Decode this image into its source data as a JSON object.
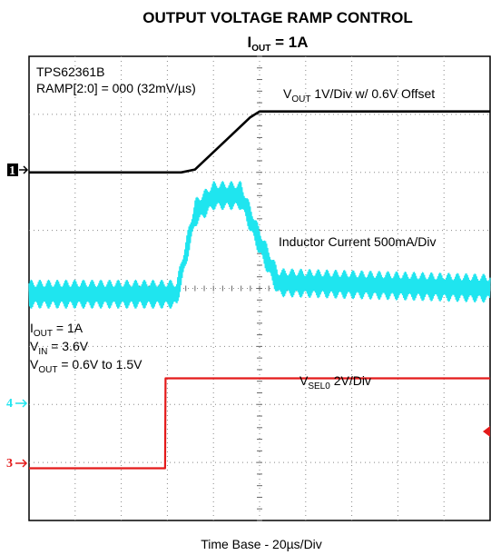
{
  "chart_data": {
    "type": "line",
    "title_main": "OUTPUT VOLTAGE RAMP CONTROL",
    "title_sub": {
      "base": "I",
      "subscript": "OUT",
      "rest": " = 1A"
    },
    "xlabel": "Time Base - 20µs/Div",
    "grid": true,
    "divisions": {
      "x": 10,
      "y": 8
    },
    "x_unit": "div",
    "y_unit": "div",
    "device": "TPS62361B",
    "ramp_setting": "RAMP[2:0] = 000 (32mV/µs)",
    "conditions": [
      {
        "base": "I",
        "subscript": "OUT",
        "rest": " = 1A"
      },
      {
        "base": "V",
        "subscript": "IN",
        "rest": " = 3.6V"
      },
      {
        "base": "V",
        "subscript": "OUT",
        "rest": " = 0.6V to 1.5V"
      }
    ],
    "series": [
      {
        "name": "V_OUT",
        "label": {
          "base": "V",
          "subscript": "OUT",
          "rest": " 1V/Div w/ 0.6V Offset"
        },
        "color": "#000000",
        "channel_marker": "1",
        "x": [
          0,
          3.3,
          3.6,
          4.2,
          4.8,
          5.0,
          10
        ],
        "y": [
          6.0,
          6.0,
          6.05,
          6.5,
          6.95,
          7.05,
          7.05
        ]
      },
      {
        "name": "Inductor Current",
        "label": {
          "base": "Inductor Current 500mA/Div",
          "subscript": "",
          "rest": ""
        },
        "color": "#1fe5ef",
        "channel_marker": "4",
        "x": [
          0,
          3.2,
          3.4,
          3.6,
          4.0,
          4.6,
          5.0,
          5.4,
          10
        ],
        "y": [
          3.9,
          3.9,
          4.6,
          5.3,
          5.6,
          5.6,
          4.8,
          4.1,
          4.0
        ],
        "ripple_div": 0.5
      },
      {
        "name": "V_SEL0",
        "label": {
          "base": "V",
          "subscript": "SEL0",
          "rest": " 2V/Div"
        },
        "color": "#e41a1a",
        "channel_marker": "3",
        "x": [
          0,
          2.95,
          2.96,
          10
        ],
        "y": [
          0.9,
          0.9,
          2.45,
          2.45
        ]
      }
    ]
  }
}
